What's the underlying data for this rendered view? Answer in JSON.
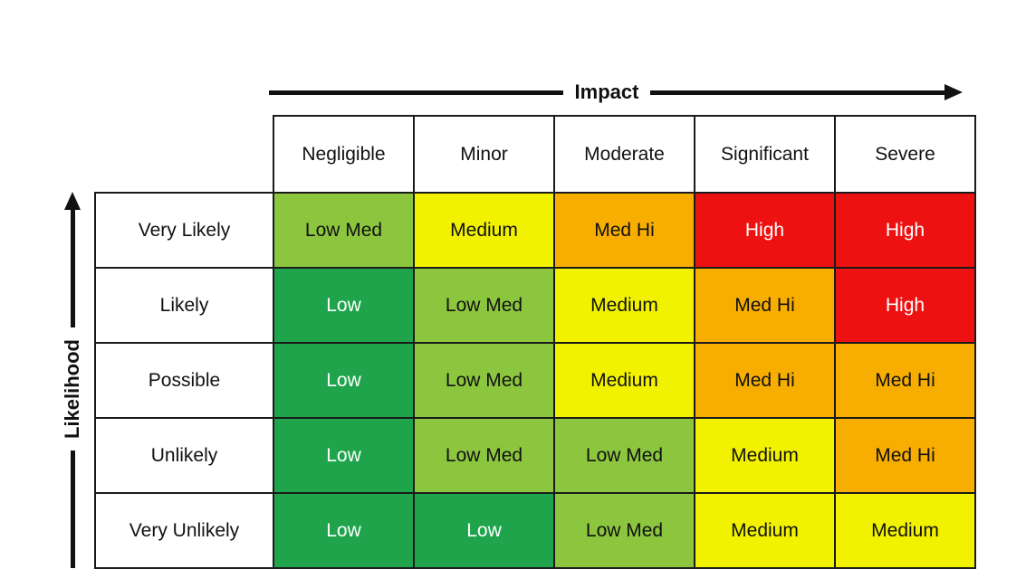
{
  "axes": {
    "impact_label": "Impact",
    "likelihood_label": "Likelihood"
  },
  "palette": {
    "low": {
      "label": "Low",
      "bg": "#1FA44C",
      "text": "#FFFFFF"
    },
    "low_med": {
      "label": "Low Med",
      "bg": "#8CC63F",
      "text": "#111111"
    },
    "medium": {
      "label": "Medium",
      "bg": "#F2F200",
      "text": "#111111"
    },
    "med_hi": {
      "label": "Med Hi",
      "bg": "#F8AE00",
      "text": "#111111"
    },
    "high": {
      "label": "High",
      "bg": "#EE1111",
      "text": "#FFFFFF"
    }
  },
  "matrix": {
    "impact_levels": [
      "Negligible",
      "Minor",
      "Moderate",
      "Significant",
      "Severe"
    ],
    "likelihood_levels": [
      "Very Likely",
      "Likely",
      "Possible",
      "Unlikely",
      "Very Unlikely"
    ],
    "cells": [
      [
        "low_med",
        "medium",
        "med_hi",
        "high",
        "high"
      ],
      [
        "low",
        "low_med",
        "medium",
        "med_hi",
        "high"
      ],
      [
        "low",
        "low_med",
        "medium",
        "med_hi",
        "med_hi"
      ],
      [
        "low",
        "low_med",
        "low_med",
        "medium",
        "med_hi"
      ],
      [
        "low",
        "low",
        "low_med",
        "medium",
        "medium"
      ]
    ]
  },
  "chart_data": {
    "type": "heatmap",
    "title": "",
    "xlabel": "Impact",
    "ylabel": "Likelihood",
    "x_categories": [
      "Negligible",
      "Minor",
      "Moderate",
      "Significant",
      "Severe"
    ],
    "y_categories": [
      "Very Likely",
      "Likely",
      "Possible",
      "Unlikely",
      "Very Unlikely"
    ],
    "values": [
      [
        "Low Med",
        "Medium",
        "Med Hi",
        "High",
        "High"
      ],
      [
        "Low",
        "Low Med",
        "Medium",
        "Med Hi",
        "High"
      ],
      [
        "Low",
        "Low Med",
        "Medium",
        "Med Hi",
        "Med Hi"
      ],
      [
        "Low",
        "Low Med",
        "Low Med",
        "Medium",
        "Med Hi"
      ],
      [
        "Low",
        "Low",
        "Low Med",
        "Medium",
        "Medium"
      ]
    ],
    "value_colors": {
      "Low": "#1FA44C",
      "Low Med": "#8CC63F",
      "Medium": "#F2F200",
      "Med Hi": "#F8AE00",
      "High": "#EE1111"
    },
    "legend_position": "none",
    "grid": "on"
  }
}
